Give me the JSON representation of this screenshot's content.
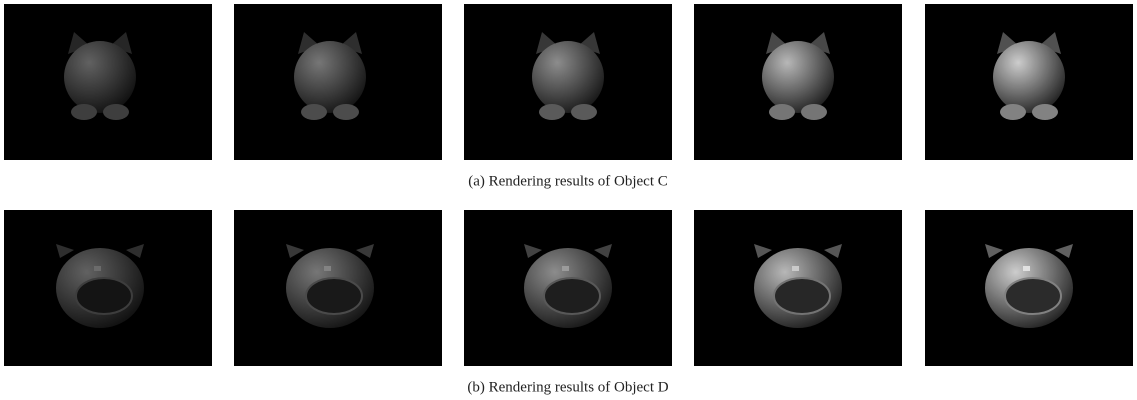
{
  "figure": {
    "rows": [
      {
        "caption": "(a) Rendering results of Object C"
      },
      {
        "caption": "(b) Rendering results of Object D"
      }
    ]
  }
}
